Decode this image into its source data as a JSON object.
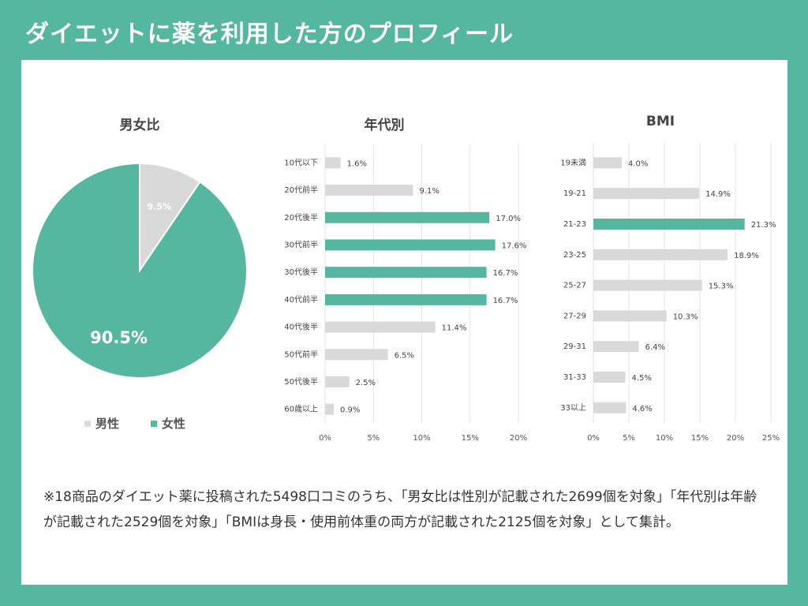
{
  "header": {
    "title": "ダイエットに薬を利用した方のプロフィール"
  },
  "colors": {
    "accent": "#55b79f",
    "neutral": "#d9d9d9"
  },
  "chart_data": [
    {
      "type": "pie",
      "title": "男女比",
      "labels": [
        "男性",
        "女性"
      ],
      "values": [
        9.5,
        90.5
      ],
      "value_labels": [
        "9.5%",
        "90.5%"
      ],
      "colors": [
        "#d9d9d9",
        "#55b79f"
      ],
      "legend": "bottom"
    },
    {
      "type": "bar",
      "orientation": "horizontal",
      "title": "年代別",
      "categories": [
        "10代以下",
        "20代前半",
        "20代後半",
        "30代前半",
        "30代後半",
        "40代前半",
        "40代後半",
        "50代前半",
        "50代後半",
        "60歳以上"
      ],
      "values": [
        1.6,
        9.1,
        17.0,
        17.6,
        16.7,
        16.7,
        11.4,
        6.5,
        2.5,
        0.9
      ],
      "value_labels": [
        "1.6%",
        "9.1%",
        "17.0%",
        "17.6%",
        "16.7%",
        "16.7%",
        "11.4%",
        "6.5%",
        "2.5%",
        "0.9%"
      ],
      "highlight": [
        false,
        false,
        true,
        true,
        true,
        true,
        false,
        false,
        false,
        false
      ],
      "xlim": [
        0,
        20
      ],
      "xticks": [
        "0%",
        "5%",
        "10%",
        "15%",
        "20%"
      ],
      "grid": true
    },
    {
      "type": "bar",
      "orientation": "horizontal",
      "title": "BMI",
      "categories": [
        "19未満",
        "19-21",
        "21-23",
        "23-25",
        "25-27",
        "27-29",
        "29-31",
        "31-33",
        "33以上"
      ],
      "values": [
        4.0,
        14.9,
        21.3,
        18.9,
        15.3,
        10.3,
        6.4,
        4.5,
        4.6
      ],
      "value_labels": [
        "4.0%",
        "14.9%",
        "21.3%",
        "18.9%",
        "15.3%",
        "10.3%",
        "6.4%",
        "4.5%",
        "4.6%"
      ],
      "highlight": [
        false,
        false,
        true,
        false,
        false,
        false,
        false,
        false,
        false
      ],
      "xlim": [
        0,
        25
      ],
      "xticks": [
        "0%",
        "5%",
        "10%",
        "15%",
        "20%",
        "25%"
      ],
      "grid": true
    }
  ],
  "note": "※18商品のダイエット薬に投稿された5498口コミのうち、「男女比は性別が記載された2699個を対象」「年代別は年齢が記載された2529個を対象」「BMIは身長・使用前体重の両方が記載された2125個を対象」として集計。"
}
